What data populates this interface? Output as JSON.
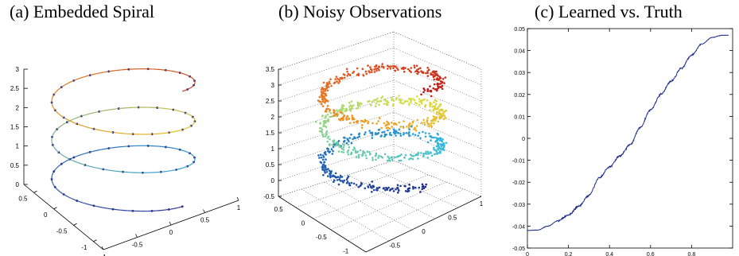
{
  "chart_data": [
    {
      "type": "line3d",
      "title": "(a) Embedded Spiral",
      "x_ticks": [
        "0.5",
        "0",
        "-0.5",
        "-1"
      ],
      "y_ticks": [
        "-1",
        "-0.5",
        "0",
        "0.5",
        "1"
      ],
      "z_ticks": [
        "0",
        "0.5",
        "1",
        "1.5",
        "2",
        "2.5",
        "3"
      ],
      "zlim": [
        0,
        3
      ],
      "curve": {
        "turns": 3,
        "radius": 1,
        "z_range": [
          0,
          3
        ],
        "markers": true
      },
      "colors": [
        "#2b2f8f",
        "#2a9fd8",
        "#e8c020",
        "#c83020"
      ]
    },
    {
      "type": "scatter3d",
      "title": "(b) Noisy Observations",
      "x_ticks": [
        "0.5",
        "0",
        "-0.5",
        "-1"
      ],
      "y_ticks": [
        "-1",
        "-0.5",
        "0",
        "0.5",
        "1"
      ],
      "z_ticks": [
        "-0.5",
        "0",
        "0.5",
        "1",
        "1.5",
        "2",
        "2.5",
        "3",
        "3.5"
      ],
      "zlim": [
        -0.5,
        3.5
      ],
      "grid": true,
      "colors": [
        "#1a2a8a",
        "#1e6fc0",
        "#35b8e0",
        "#7fd0a0",
        "#d8e040",
        "#f0a020",
        "#e05020",
        "#b81818"
      ]
    },
    {
      "type": "line",
      "title": "(c) Learned vs. Truth",
      "xlim": [
        0,
        1
      ],
      "ylim": [
        -0.05,
        0.05
      ],
      "x_ticks": [
        "0",
        "0.2",
        "0.4",
        "0.6",
        "0.8"
      ],
      "y_ticks": [
        "0.05",
        "0.04",
        "0.03",
        "0.02",
        "0.01",
        "0",
        "-0.01",
        "-0.02",
        "-0.03",
        "-0.04",
        "-0.05"
      ],
      "series": [
        {
          "color": "#1a2a8c",
          "x": [
            0,
            0.05,
            0.1,
            0.15,
            0.2,
            0.25,
            0.3,
            0.35,
            0.4,
            0.45,
            0.5,
            0.55,
            0.6,
            0.65,
            0.7,
            0.75,
            0.8,
            0.85,
            0.9,
            0.95,
            0.98
          ],
          "y": [
            -0.042,
            -0.0418,
            -0.04,
            -0.0375,
            -0.035,
            -0.031,
            -0.026,
            -0.018,
            -0.013,
            -0.008,
            -0.003,
            0.005,
            0.013,
            0.02,
            0.026,
            0.032,
            0.038,
            0.043,
            0.046,
            0.047,
            0.047
          ]
        }
      ]
    }
  ]
}
